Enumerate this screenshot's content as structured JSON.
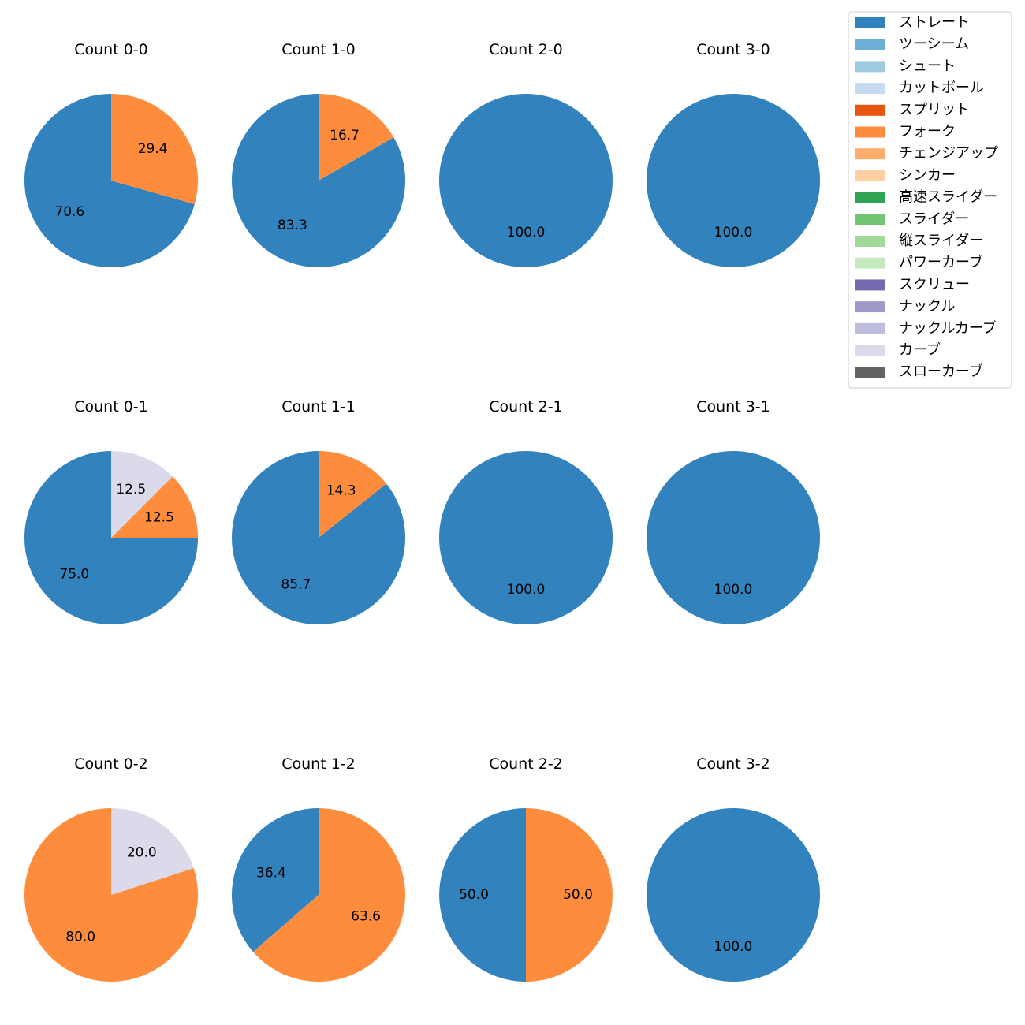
{
  "pitch_types": [
    {
      "name": "ストレート",
      "color": "#3182bd"
    },
    {
      "name": "ツーシーム",
      "color": "#6baed6"
    },
    {
      "name": "シュート",
      "color": "#9ecae1"
    },
    {
      "name": "カットボール",
      "color": "#c6dbef"
    },
    {
      "name": "スプリット",
      "color": "#e6550d"
    },
    {
      "name": "フォーク",
      "color": "#fd8d3c"
    },
    {
      "name": "チェンジアップ",
      "color": "#fdae6b"
    },
    {
      "name": "シンカー",
      "color": "#fdd0a2"
    },
    {
      "name": "高速スライダー",
      "color": "#31a354"
    },
    {
      "name": "スライダー",
      "color": "#74c476"
    },
    {
      "name": "縦スライダー",
      "color": "#a1d99b"
    },
    {
      "name": "パワーカーブ",
      "color": "#c7e9c0"
    },
    {
      "name": "スクリュー",
      "color": "#756bb1"
    },
    {
      "name": "ナックル",
      "color": "#9e9ac8"
    },
    {
      "name": "ナックルカーブ",
      "color": "#bcbddc"
    },
    {
      "name": "カーブ",
      "color": "#dadaeb"
    },
    {
      "name": "スローカーブ",
      "color": "#636363"
    }
  ],
  "chart_data": [
    {
      "type": "pie",
      "title": "Count 0-0",
      "slices": [
        {
          "label": "ストレート",
          "value": 70.6
        },
        {
          "label": "フォーク",
          "value": 29.4
        }
      ]
    },
    {
      "type": "pie",
      "title": "Count 1-0",
      "slices": [
        {
          "label": "ストレート",
          "value": 83.3
        },
        {
          "label": "フォーク",
          "value": 16.7
        }
      ]
    },
    {
      "type": "pie",
      "title": "Count 2-0",
      "slices": [
        {
          "label": "ストレート",
          "value": 100.0
        }
      ]
    },
    {
      "type": "pie",
      "title": "Count 3-0",
      "slices": [
        {
          "label": "ストレート",
          "value": 100.0
        }
      ]
    },
    {
      "type": "pie",
      "title": "Count 0-1",
      "slices": [
        {
          "label": "ストレート",
          "value": 75.0
        },
        {
          "label": "フォーク",
          "value": 12.5
        },
        {
          "label": "カーブ",
          "value": 12.5
        }
      ]
    },
    {
      "type": "pie",
      "title": "Count 1-1",
      "slices": [
        {
          "label": "ストレート",
          "value": 85.7
        },
        {
          "label": "フォーク",
          "value": 14.3
        }
      ]
    },
    {
      "type": "pie",
      "title": "Count 2-1",
      "slices": [
        {
          "label": "ストレート",
          "value": 100.0
        }
      ]
    },
    {
      "type": "pie",
      "title": "Count 3-1",
      "slices": [
        {
          "label": "ストレート",
          "value": 100.0
        }
      ]
    },
    {
      "type": "pie",
      "title": "Count 0-2",
      "slices": [
        {
          "label": "フォーク",
          "value": 80.0
        },
        {
          "label": "カーブ",
          "value": 20.0
        }
      ]
    },
    {
      "type": "pie",
      "title": "Count 1-2",
      "slices": [
        {
          "label": "ストレート",
          "value": 36.4
        },
        {
          "label": "フォーク",
          "value": 63.6
        }
      ]
    },
    {
      "type": "pie",
      "title": "Count 2-2",
      "slices": [
        {
          "label": "ストレート",
          "value": 50.0
        },
        {
          "label": "フォーク",
          "value": 50.0
        }
      ]
    },
    {
      "type": "pie",
      "title": "Count 3-2",
      "slices": [
        {
          "label": "ストレート",
          "value": 100.0
        }
      ]
    }
  ]
}
